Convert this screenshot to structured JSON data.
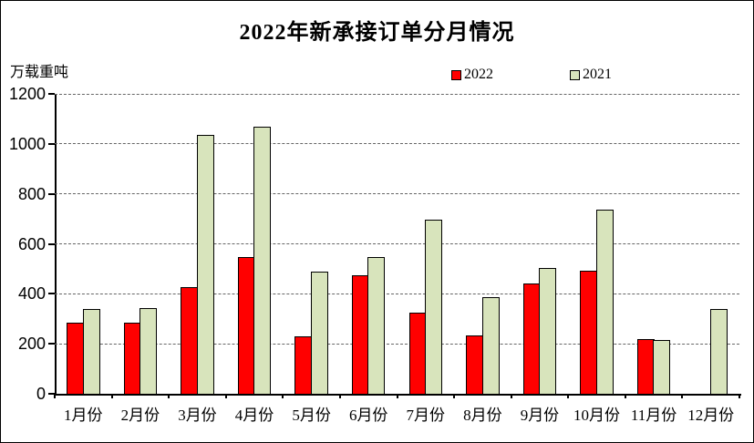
{
  "title": "2022年新承接订单分月情况",
  "chart_data": {
    "type": "bar",
    "title": "2022年新承接订单分月情况",
    "ylabel": "万载重吨",
    "xlabel": "",
    "categories": [
      "1月份",
      "2月份",
      "3月份",
      "4月份",
      "5月份",
      "6月份",
      "7月份",
      "8月份",
      "9月份",
      "10月份",
      "11月份",
      "12月份"
    ],
    "series": [
      {
        "name": "2022",
        "color": "#FF0000",
        "values": [
          283,
          283,
          428,
          548,
          228,
          475,
          325,
          232,
          441,
          494,
          218,
          0
        ]
      },
      {
        "name": "2021",
        "color": "#D8E4BC",
        "values": [
          338,
          342,
          1037,
          1067,
          489,
          548,
          697,
          388,
          503,
          735,
          215,
          341
        ]
      }
    ],
    "ylim": [
      0,
      1200
    ],
    "y_ticks": [
      0,
      200,
      400,
      600,
      800,
      1000,
      1200
    ],
    "grid": "horizontal-dashed",
    "legend_position": "top-center",
    "bar_border_color": "#000000",
    "gridline_color": "#666666",
    "background_color": "#FFFFFF"
  }
}
